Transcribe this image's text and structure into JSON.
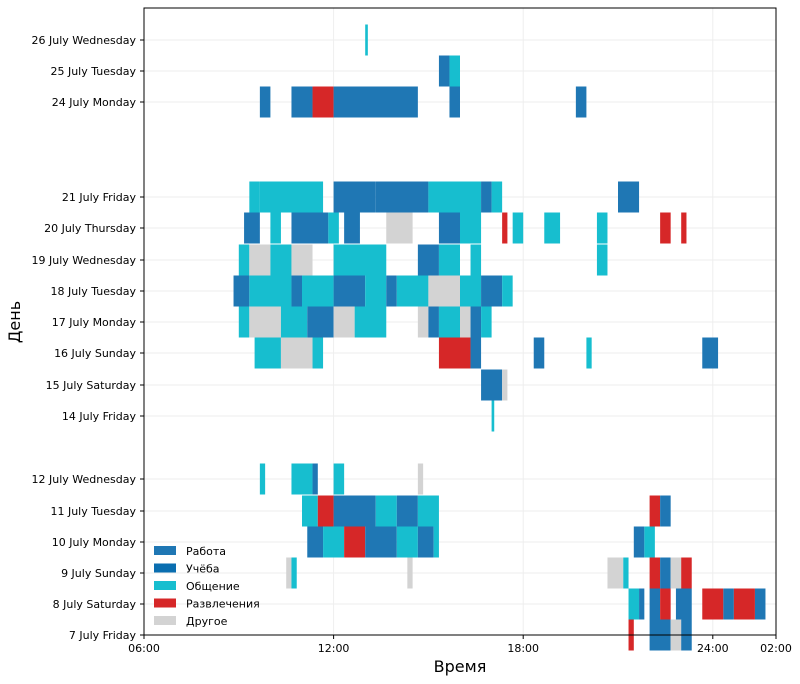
{
  "chart_data": {
    "type": "timeline",
    "xlabel": "Время",
    "ylabel": "День",
    "x_range": [
      "06:00",
      "26:00"
    ],
    "x_ticks": [
      "06:00",
      "12:00",
      "18:00",
      "24:00",
      "02:00"
    ],
    "grid": true,
    "legend_position": "bottom-left",
    "categories_colors": {
      "Работа": "#1f77b4",
      "Учёба": "#0a6eb0",
      "Общение": "#17becf",
      "Развлечения": "#d62728",
      "Другое": "#d3d3d3"
    },
    "series": [
      {
        "name": "Работа",
        "color": "#1f77b4"
      },
      {
        "name": "Учёба",
        "color": "#0a6eb0"
      },
      {
        "name": "Общение",
        "color": "#17becf"
      },
      {
        "name": "Развлечения",
        "color": "#d62728"
      },
      {
        "name": "Другое",
        "color": "#d3d3d3"
      }
    ],
    "days": [
      {
        "label": "7 July Friday",
        "segments": [
          [
            "21:20",
            "21:30",
            "Развлечения"
          ],
          [
            "22:00",
            "22:40",
            "Работа"
          ],
          [
            "22:40",
            "23:00",
            "Другое"
          ],
          [
            "23:00",
            "23:20",
            "Работа"
          ]
        ]
      },
      {
        "label": "8 July Saturday",
        "segments": [
          [
            "21:20",
            "21:40",
            "Общение"
          ],
          [
            "21:40",
            "21:50",
            "Работа"
          ],
          [
            "22:00",
            "22:20",
            "Работа"
          ],
          [
            "22:20",
            "22:40",
            "Развлечения"
          ],
          [
            "22:50",
            "23:20",
            "Работа"
          ],
          [
            "23:40",
            "24:20",
            "Развлечения"
          ],
          [
            "24:20",
            "24:40",
            "Работа"
          ],
          [
            "24:40",
            "25:20",
            "Развлечения"
          ],
          [
            "25:20",
            "25:40",
            "Работа"
          ]
        ]
      },
      {
        "label": "9 July Sunday",
        "segments": [
          [
            "10:30",
            "10:40",
            "Другое"
          ],
          [
            "10:40",
            "10:50",
            "Общение"
          ],
          [
            "14:20",
            "14:30",
            "Другое"
          ],
          [
            "20:40",
            "21:10",
            "Другое"
          ],
          [
            "21:10",
            "21:20",
            "Общение"
          ],
          [
            "22:00",
            "22:20",
            "Развлечения"
          ],
          [
            "22:20",
            "22:40",
            "Работа"
          ],
          [
            "22:40",
            "23:00",
            "Другое"
          ],
          [
            "23:00",
            "23:20",
            "Развлечения"
          ]
        ]
      },
      {
        "label": "10 July Monday",
        "segments": [
          [
            "11:10",
            "11:40",
            "Работа"
          ],
          [
            "11:40",
            "12:20",
            "Общение"
          ],
          [
            "12:20",
            "13:00",
            "Развлечения"
          ],
          [
            "13:00",
            "14:00",
            "Работа"
          ],
          [
            "14:00",
            "14:40",
            "Общение"
          ],
          [
            "14:40",
            "15:10",
            "Работа"
          ],
          [
            "15:10",
            "15:20",
            "Общение"
          ],
          [
            "21:30",
            "21:50",
            "Работа"
          ],
          [
            "21:50",
            "22:10",
            "Общение"
          ]
        ]
      },
      {
        "label": "11 July Tuesday",
        "segments": [
          [
            "11:00",
            "11:30",
            "Общение"
          ],
          [
            "11:30",
            "12:00",
            "Развлечения"
          ],
          [
            "12:00",
            "13:20",
            "Работа"
          ],
          [
            "13:20",
            "14:00",
            "Общение"
          ],
          [
            "14:00",
            "14:40",
            "Работа"
          ],
          [
            "14:40",
            "15:20",
            "Общение"
          ],
          [
            "22:00",
            "22:20",
            "Развлечения"
          ],
          [
            "22:20",
            "22:40",
            "Работа"
          ]
        ]
      },
      {
        "label": "12 July Wednesday",
        "segments": [
          [
            "09:40",
            "09:50",
            "Общение"
          ],
          [
            "10:40",
            "11:20",
            "Общение"
          ],
          [
            "11:20",
            "11:30",
            "Работа"
          ],
          [
            "12:00",
            "12:20",
            "Общение"
          ],
          [
            "14:40",
            "14:50",
            "Другое"
          ]
        ]
      },
      {
        "label": "14 July Friday",
        "segments": [
          [
            "17:00",
            "17:05",
            "Общение"
          ]
        ]
      },
      {
        "label": "15 July Saturday",
        "segments": [
          [
            "16:40",
            "17:20",
            "Работа"
          ],
          [
            "17:20",
            "17:30",
            "Другое"
          ]
        ]
      },
      {
        "label": "16 July Sunday",
        "segments": [
          [
            "09:30",
            "10:20",
            "Общение"
          ],
          [
            "10:20",
            "11:20",
            "Другое"
          ],
          [
            "11:20",
            "11:40",
            "Общение"
          ],
          [
            "15:20",
            "16:20",
            "Развлечения"
          ],
          [
            "16:20",
            "16:40",
            "Работа"
          ],
          [
            "18:20",
            "18:40",
            "Работа"
          ],
          [
            "20:00",
            "20:10",
            "Общение"
          ],
          [
            "23:40",
            "24:10",
            "Работа"
          ]
        ]
      },
      {
        "label": "17 July Monday",
        "segments": [
          [
            "09:00",
            "09:20",
            "Общение"
          ],
          [
            "09:20",
            "10:20",
            "Другое"
          ],
          [
            "10:20",
            "11:10",
            "Общение"
          ],
          [
            "11:10",
            "12:00",
            "Работа"
          ],
          [
            "12:00",
            "12:40",
            "Другое"
          ],
          [
            "12:40",
            "13:40",
            "Общение"
          ],
          [
            "14:40",
            "15:00",
            "Другое"
          ],
          [
            "15:00",
            "15:20",
            "Работа"
          ],
          [
            "15:20",
            "16:00",
            "Общение"
          ],
          [
            "16:00",
            "16:20",
            "Другое"
          ],
          [
            "16:20",
            "16:40",
            "Работа"
          ],
          [
            "16:40",
            "17:00",
            "Общение"
          ]
        ]
      },
      {
        "label": "18 July Tuesday",
        "segments": [
          [
            "08:50",
            "09:20",
            "Работа"
          ],
          [
            "09:20",
            "10:40",
            "Общение"
          ],
          [
            "10:40",
            "11:00",
            "Работа"
          ],
          [
            "11:00",
            "12:00",
            "Общение"
          ],
          [
            "12:00",
            "13:00",
            "Работа"
          ],
          [
            "13:00",
            "13:40",
            "Общение"
          ],
          [
            "13:40",
            "14:00",
            "Работа"
          ],
          [
            "14:00",
            "15:00",
            "Общение"
          ],
          [
            "15:00",
            "16:00",
            "Другое"
          ],
          [
            "16:00",
            "16:40",
            "Общение"
          ],
          [
            "16:40",
            "17:20",
            "Работа"
          ],
          [
            "17:20",
            "17:40",
            "Общение"
          ]
        ]
      },
      {
        "label": "19 July Wednesday",
        "segments": [
          [
            "09:00",
            "09:20",
            "Общение"
          ],
          [
            "09:20",
            "10:00",
            "Другое"
          ],
          [
            "10:00",
            "10:40",
            "Общение"
          ],
          [
            "10:40",
            "11:20",
            "Другое"
          ],
          [
            "12:00",
            "13:40",
            "Общение"
          ],
          [
            "14:40",
            "15:20",
            "Работа"
          ],
          [
            "15:20",
            "16:00",
            "Общение"
          ],
          [
            "16:20",
            "16:40",
            "Общение"
          ],
          [
            "20:20",
            "20:40",
            "Общение"
          ]
        ]
      },
      {
        "label": "20 July Thursday",
        "segments": [
          [
            "09:10",
            "09:40",
            "Работа"
          ],
          [
            "10:00",
            "10:20",
            "Общение"
          ],
          [
            "10:40",
            "11:50",
            "Работа"
          ],
          [
            "11:50",
            "12:10",
            "Общение"
          ],
          [
            "12:20",
            "12:50",
            "Работа"
          ],
          [
            "13:40",
            "14:30",
            "Другое"
          ],
          [
            "15:20",
            "16:00",
            "Работа"
          ],
          [
            "16:00",
            "16:40",
            "Общение"
          ],
          [
            "17:20",
            "17:30",
            "Развлечения"
          ],
          [
            "17:40",
            "18:00",
            "Общение"
          ],
          [
            "18:40",
            "19:10",
            "Общение"
          ],
          [
            "20:20",
            "20:40",
            "Общение"
          ],
          [
            "22:20",
            "22:40",
            "Развлечения"
          ],
          [
            "23:00",
            "23:10",
            "Развлечения"
          ]
        ]
      },
      {
        "label": "21 July Friday",
        "segments": [
          [
            "09:20",
            "09:40",
            "Общение"
          ],
          [
            "09:40",
            "11:40",
            "Общение"
          ],
          [
            "12:00",
            "13:20",
            "Работа"
          ],
          [
            "13:20",
            "15:00",
            "Работа"
          ],
          [
            "15:00",
            "16:40",
            "Общение"
          ],
          [
            "16:40",
            "17:00",
            "Работа"
          ],
          [
            "17:00",
            "17:20",
            "Общение"
          ],
          [
            "21:00",
            "21:40",
            "Работа"
          ]
        ]
      },
      {
        "label": "24 July Monday",
        "segments": [
          [
            "09:40",
            "10:00",
            "Работа"
          ],
          [
            "10:40",
            "11:20",
            "Работа"
          ],
          [
            "11:20",
            "12:00",
            "Развлечения"
          ],
          [
            "12:00",
            "14:40",
            "Работа"
          ],
          [
            "15:40",
            "16:00",
            "Работа"
          ],
          [
            "19:40",
            "20:00",
            "Работа"
          ]
        ]
      },
      {
        "label": "25 July Tuesday",
        "segments": [
          [
            "15:20",
            "15:40",
            "Работа"
          ],
          [
            "15:40",
            "16:00",
            "Общение"
          ]
        ]
      },
      {
        "label": "26 July Wednesday",
        "segments": [
          [
            "13:00",
            "13:05",
            "Общение"
          ]
        ]
      }
    ]
  }
}
